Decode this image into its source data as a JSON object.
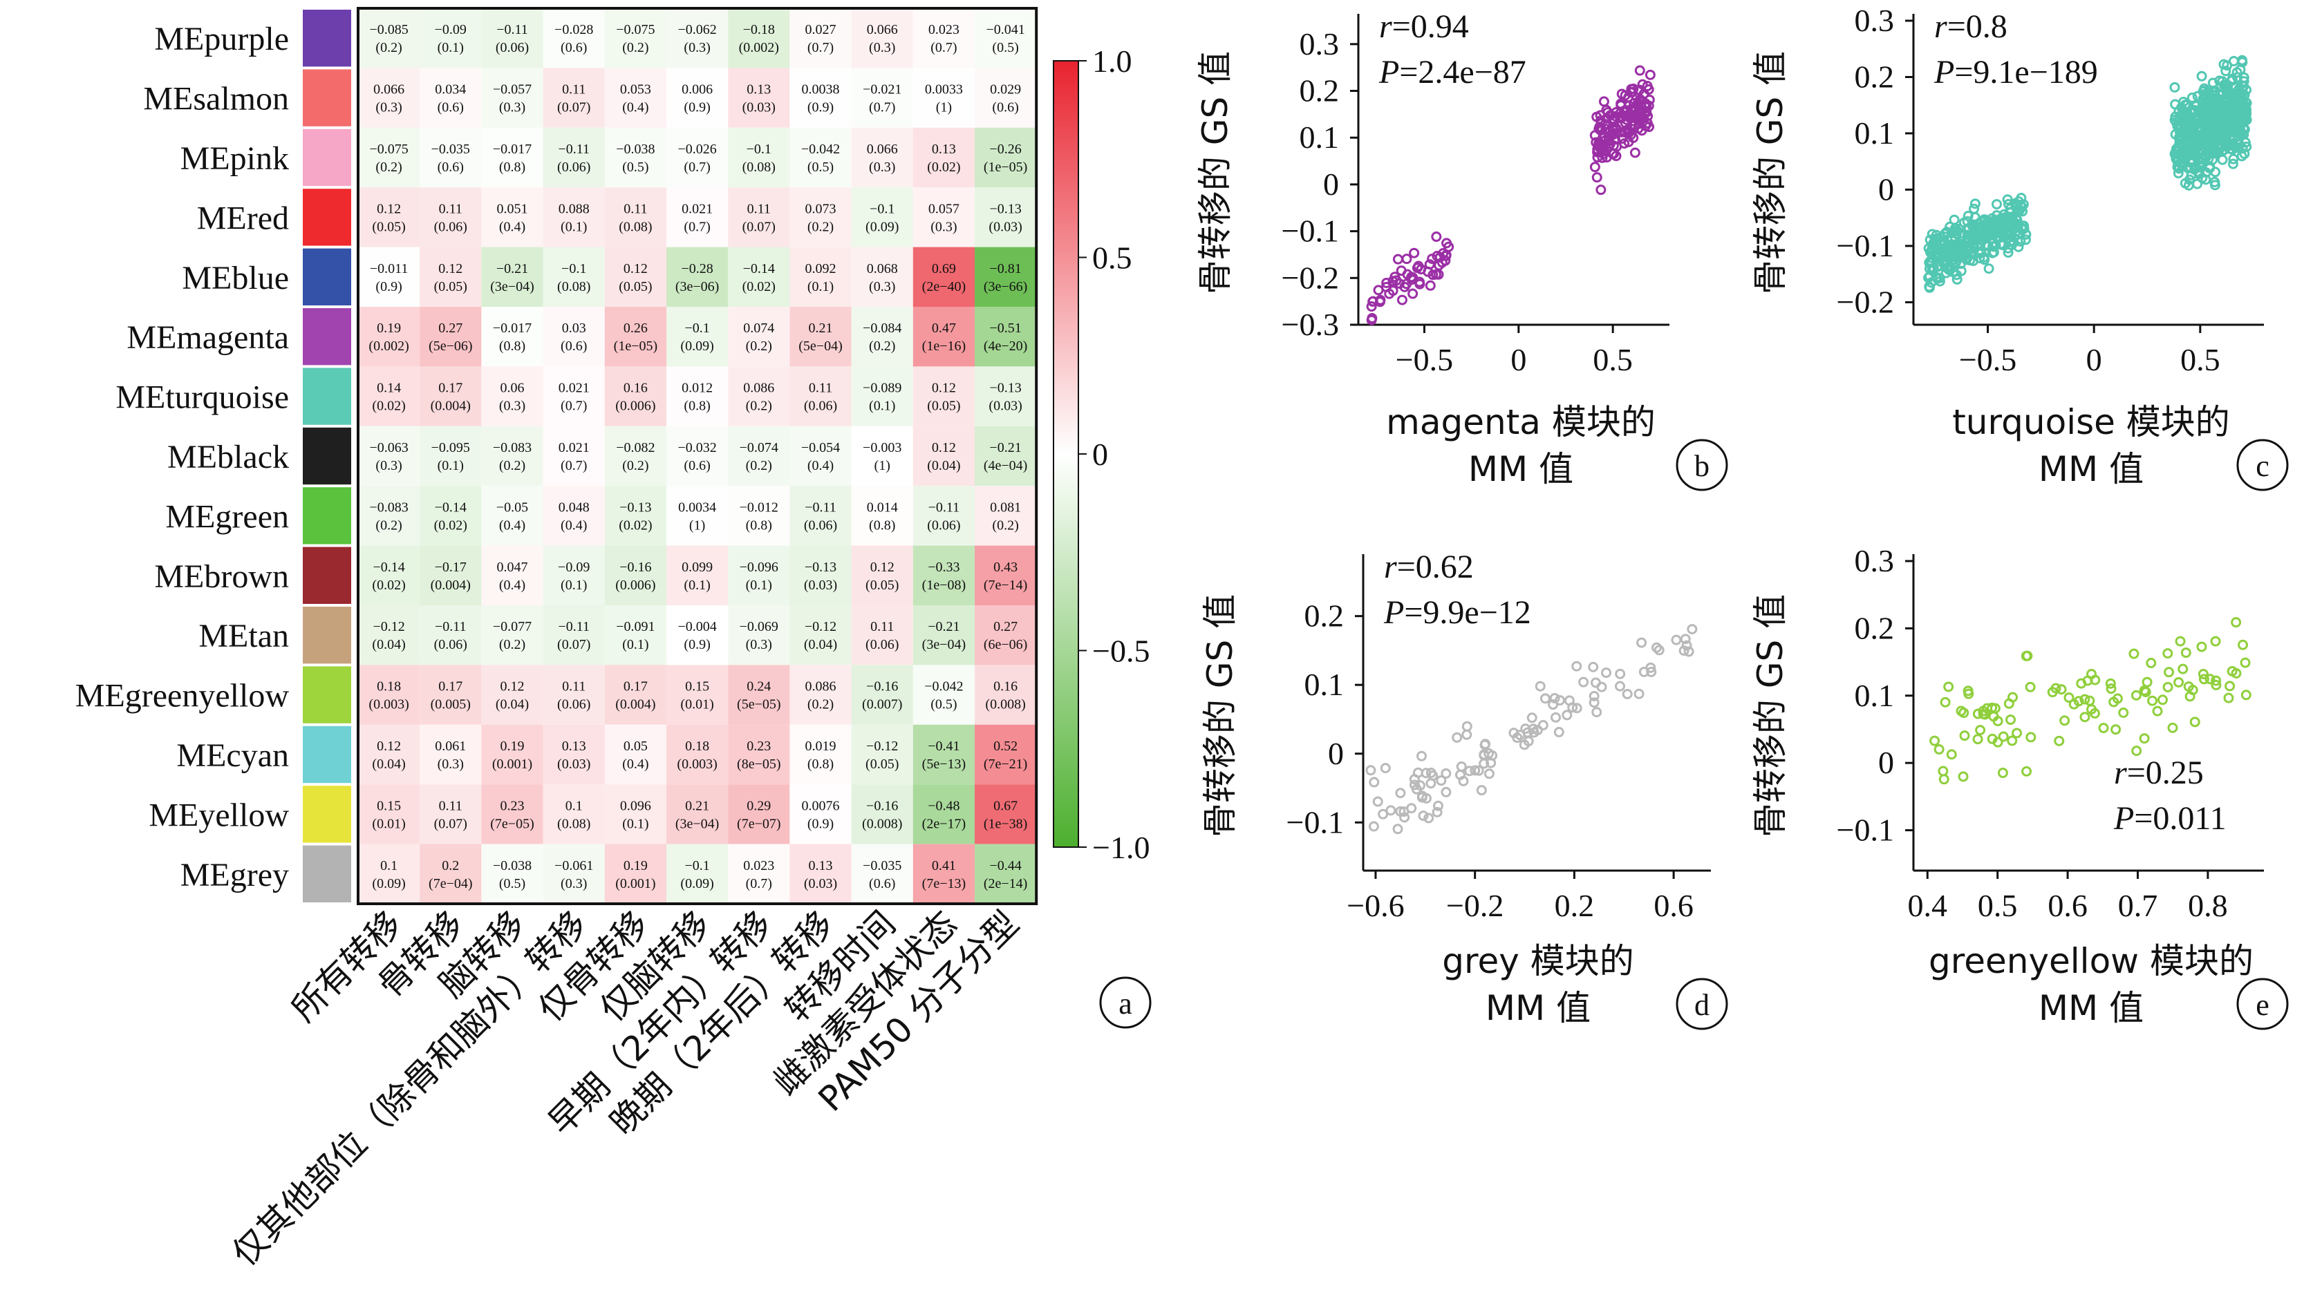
{
  "chart_data": [
    {
      "type": "heatmap",
      "panel_label": "a",
      "rows": [
        "MEpurple",
        "MEsalmon",
        "MEpink",
        "MEred",
        "MEblue",
        "MEmagenta",
        "MEturquoise",
        "MEblack",
        "MEgreen",
        "MEbrown",
        "MEtan",
        "MEgreenyellow",
        "MEcyan",
        "MEyellow",
        "MEgrey"
      ],
      "row_colors": [
        "#6c3fad",
        "#f36b6b",
        "#f6a6c6",
        "#ef2a2e",
        "#3352a8",
        "#a144b0",
        "#5ccbb5",
        "#1f1f1f",
        "#5ac23c",
        "#99282f",
        "#c6a27c",
        "#9ed43c",
        "#6fd1d4",
        "#e6e43a",
        "#b3b3b3"
      ],
      "columns": [
        "所有转移",
        "骨转移",
        "脑转移",
        "仅其他部位（除骨和脑外）转移",
        "仅骨转移",
        "仅脑转移",
        "早期（2年内）转移",
        "晚期（2年后）转移",
        "转移时间",
        "雌激素受体状态",
        "PAM50 分子分型"
      ],
      "values": [
        [
          -0.085,
          -0.09,
          -0.11,
          -0.028,
          -0.075,
          -0.062,
          -0.18,
          0.027,
          0.066,
          0.023,
          -0.041
        ],
        [
          0.066,
          0.034,
          -0.057,
          0.11,
          0.053,
          0.006,
          0.13,
          0.0038,
          -0.021,
          0.0033,
          0.029
        ],
        [
          -0.075,
          -0.035,
          -0.017,
          -0.11,
          -0.038,
          -0.026,
          -0.1,
          -0.042,
          0.066,
          0.13,
          -0.26
        ],
        [
          0.12,
          0.11,
          0.051,
          0.088,
          0.11,
          0.021,
          0.11,
          0.073,
          -0.1,
          0.057,
          -0.13
        ],
        [
          -0.011,
          0.12,
          -0.21,
          -0.1,
          0.12,
          -0.28,
          -0.14,
          0.092,
          0.068,
          0.69,
          -0.81
        ],
        [
          0.19,
          0.27,
          -0.017,
          0.03,
          0.26,
          -0.1,
          0.074,
          0.21,
          -0.084,
          0.47,
          -0.51
        ],
        [
          0.14,
          0.17,
          0.06,
          0.021,
          0.16,
          0.012,
          0.086,
          0.11,
          -0.089,
          0.12,
          -0.13
        ],
        [
          -0.063,
          -0.095,
          -0.083,
          0.021,
          -0.082,
          -0.032,
          -0.074,
          -0.054,
          -0.003,
          0.12,
          -0.21
        ],
        [
          -0.083,
          -0.14,
          -0.05,
          0.048,
          -0.13,
          0.0034,
          -0.012,
          -0.11,
          0.014,
          -0.11,
          0.081
        ],
        [
          -0.14,
          -0.17,
          0.047,
          -0.09,
          -0.16,
          0.099,
          -0.096,
          -0.13,
          0.12,
          -0.33,
          0.43
        ],
        [
          -0.12,
          -0.11,
          -0.077,
          -0.11,
          -0.091,
          -0.004,
          -0.069,
          -0.12,
          0.11,
          -0.21,
          0.27
        ],
        [
          0.18,
          0.17,
          0.12,
          0.11,
          0.17,
          0.15,
          0.24,
          0.086,
          -0.16,
          -0.042,
          0.16
        ],
        [
          0.12,
          0.061,
          0.19,
          0.13,
          0.05,
          0.18,
          0.23,
          0.019,
          -0.12,
          -0.41,
          0.52
        ],
        [
          0.15,
          0.11,
          0.23,
          0.1,
          0.096,
          0.21,
          0.29,
          0.0076,
          -0.16,
          -0.48,
          0.67
        ],
        [
          0.1,
          0.2,
          -0.038,
          -0.061,
          0.19,
          -0.1,
          0.023,
          0.13,
          -0.035,
          0.41,
          -0.44
        ]
      ],
      "p_values": [
        [
          "(0.2)",
          "(0.1)",
          "(0.06)",
          "(0.6)",
          "(0.2)",
          "(0.3)",
          "(0.002)",
          "(0.7)",
          "(0.3)",
          "(0.7)",
          "(0.5)"
        ],
        [
          "(0.3)",
          "(0.6)",
          "(0.3)",
          "(0.07)",
          "(0.4)",
          "(0.9)",
          "(0.03)",
          "(0.9)",
          "(0.7)",
          "(1)",
          "(0.6)"
        ],
        [
          "(0.2)",
          "(0.6)",
          "(0.8)",
          "(0.06)",
          "(0.5)",
          "(0.7)",
          "(0.08)",
          "(0.5)",
          "(0.3)",
          "(0.02)",
          "(1e−05)"
        ],
        [
          "(0.05)",
          "(0.06)",
          "(0.4)",
          "(0.1)",
          "(0.08)",
          "(0.7)",
          "(0.07)",
          "(0.2)",
          "(0.09)",
          "(0.3)",
          "(0.03)"
        ],
        [
          "(0.9)",
          "(0.05)",
          "(3e−04)",
          "(0.08)",
          "(0.05)",
          "(3e−06)",
          "(0.02)",
          "(0.1)",
          "(0.3)",
          "(2e−40)",
          "(3e−66)"
        ],
        [
          "(0.002)",
          "(5e−06)",
          "(0.8)",
          "(0.6)",
          "(1e−05)",
          "(0.09)",
          "(0.2)",
          "(5e−04)",
          "(0.2)",
          "(1e−16)",
          "(4e−20)"
        ],
        [
          "(0.02)",
          "(0.004)",
          "(0.3)",
          "(0.7)",
          "(0.006)",
          "(0.8)",
          "(0.2)",
          "(0.06)",
          "(0.1)",
          "(0.05)",
          "(0.03)"
        ],
        [
          "(0.3)",
          "(0.1)",
          "(0.2)",
          "(0.7)",
          "(0.2)",
          "(0.6)",
          "(0.2)",
          "(0.4)",
          "(1)",
          "(0.04)",
          "(4e−04)"
        ],
        [
          "(0.2)",
          "(0.02)",
          "(0.4)",
          "(0.4)",
          "(0.02)",
          "(1)",
          "(0.8)",
          "(0.06)",
          "(0.8)",
          "(0.06)",
          "(0.2)"
        ],
        [
          "(0.02)",
          "(0.004)",
          "(0.4)",
          "(0.1)",
          "(0.006)",
          "(0.1)",
          "(0.1)",
          "(0.03)",
          "(0.05)",
          "(1e−08)",
          "(7e−14)"
        ],
        [
          "(0.04)",
          "(0.06)",
          "(0.2)",
          "(0.07)",
          "(0.1)",
          "(0.9)",
          "(0.3)",
          "(0.04)",
          "(0.06)",
          "(3e−04)",
          "(6e−06)"
        ],
        [
          "(0.003)",
          "(0.005)",
          "(0.04)",
          "(0.06)",
          "(0.004)",
          "(0.01)",
          "(5e−05)",
          "(0.2)",
          "(0.007)",
          "(0.5)",
          "(0.008)"
        ],
        [
          "(0.04)",
          "(0.3)",
          "(0.001)",
          "(0.03)",
          "(0.4)",
          "(0.003)",
          "(8e−05)",
          "(0.8)",
          "(0.05)",
          "(5e−13)",
          "(7e−21)"
        ],
        [
          "(0.01)",
          "(0.07)",
          "(7e−05)",
          "(0.08)",
          "(0.1)",
          "(3e−04)",
          "(7e−07)",
          "(0.9)",
          "(0.008)",
          "(2e−17)",
          "(1e−38)"
        ],
        [
          "(0.09)",
          "(7e−04)",
          "(0.5)",
          "(0.3)",
          "(0.001)",
          "(0.09)",
          "(0.7)",
          "(0.03)",
          "(0.6)",
          "(7e−13)",
          "(2e−14)"
        ]
      ],
      "colorbar": {
        "range": [
          -1.0,
          1.0
        ],
        "ticks": [
          1.0,
          0.5,
          0,
          -0.5,
          -1.0
        ],
        "tick_labels": [
          "1.0",
          "0.5",
          "0",
          "−0.5",
          "−1.0"
        ],
        "low_color": "#4caf2e",
        "mid_color": "#ffffff",
        "high_color": "#e8232f"
      }
    },
    {
      "type": "scatter",
      "panel_label": "b",
      "color": "#9b2fa5",
      "xlabel_line1": "magenta 模块的",
      "xlabel_line2": "MM 值",
      "ylabel": "骨转移的 GS 值",
      "xlim": [
        -0.85,
        0.8
      ],
      "ylim": [
        -0.3,
        0.35
      ],
      "xticks": [
        -0.5,
        0,
        0.5
      ],
      "xtick_labels": [
        "−0.5",
        "0",
        "0.5"
      ],
      "yticks": [
        0.3,
        0.2,
        0.1,
        0,
        -0.1,
        -0.2,
        -0.3
      ],
      "ytick_labels": [
        "0.3",
        "0.2",
        "0.1",
        "0",
        "−0.1",
        "−0.2",
        "−0.3"
      ],
      "stat_r_label": "r",
      "stat_r": "=0.94",
      "stat_p_label": "P",
      "stat_p": "=2.4e−87",
      "clusters": [
        {
          "n": 52,
          "x_range": [
            -0.78,
            -0.35
          ],
          "y_center": -0.2,
          "y_spread": 0.045,
          "slope": 0.22
        },
        {
          "n": 140,
          "x_range": [
            0.4,
            0.7
          ],
          "y_center": 0.13,
          "y_spread": 0.065,
          "slope": 0.35
        }
      ]
    },
    {
      "type": "scatter",
      "panel_label": "c",
      "color": "#52c7b2",
      "xlabel_line1": "turquoise 模块的",
      "xlabel_line2": "MM 值",
      "ylabel": "骨转移的 GS 值",
      "xlim": [
        -0.85,
        0.8
      ],
      "ylim": [
        -0.24,
        0.3
      ],
      "xticks": [
        -0.5,
        0,
        0.5
      ],
      "xtick_labels": [
        "−0.5",
        "0",
        "0.5"
      ],
      "yticks": [
        0.3,
        0.2,
        0.1,
        0,
        -0.1,
        -0.2
      ],
      "ytick_labels": [
        "0.3",
        "0.2",
        "0.1",
        "0",
        "−0.1",
        "−0.2"
      ],
      "stat_r_label": "r",
      "stat_r": "=0.8",
      "stat_p_label": "P",
      "stat_p": "=9.1e−189",
      "clusters": [
        {
          "n": 300,
          "x_range": [
            -0.78,
            -0.32
          ],
          "y_center": -0.09,
          "y_spread": 0.045,
          "slope": 0.15
        },
        {
          "n": 520,
          "x_range": [
            0.38,
            0.72
          ],
          "y_center": 0.11,
          "y_spread": 0.07,
          "slope": 0.2
        }
      ]
    },
    {
      "type": "scatter",
      "panel_label": "d",
      "color": "#b9b9b9",
      "xlabel_line1": "grey 模块的",
      "xlabel_line2": "MM 值",
      "ylabel": "骨转移的 GS 值",
      "xlim": [
        -0.65,
        0.75
      ],
      "ylim": [
        -0.17,
        0.28
      ],
      "xticks": [
        -0.6,
        -0.2,
        0.2,
        0.6
      ],
      "xtick_labels": [
        "−0.6",
        "−0.2",
        "0.2",
        "0.6"
      ],
      "yticks": [
        0.2,
        0.1,
        0,
        -0.1
      ],
      "ytick_labels": [
        "0.2",
        "0.1",
        "0",
        "−0.1"
      ],
      "stat_r_label": "r",
      "stat_r": "=0.62",
      "stat_p_label": "P",
      "stat_p": "=9.9e−12",
      "clusters": [
        {
          "n": 100,
          "x_range": [
            -0.62,
            0.7
          ],
          "y_center": 0.04,
          "y_spread": 0.05,
          "slope": 0.2
        }
      ]
    },
    {
      "type": "scatter",
      "panel_label": "e",
      "color": "#8fcf3c",
      "xlabel_line1": "greenyellow 模块的",
      "xlabel_line2": "MM 值",
      "ylabel": "骨转移的 GS 值",
      "xlim": [
        0.38,
        0.88
      ],
      "ylim": [
        -0.16,
        0.3
      ],
      "xticks": [
        0.4,
        0.5,
        0.6,
        0.7,
        0.8
      ],
      "xtick_labels": [
        "0.4",
        "0.5",
        "0.6",
        "0.7",
        "0.8"
      ],
      "yticks": [
        0.3,
        0.2,
        0.1,
        0,
        -0.1
      ],
      "ytick_labels": [
        "0.3",
        "0.2",
        "0.1",
        "0",
        "−0.1"
      ],
      "stat_r_label": "r",
      "stat_r": "=0.25",
      "stat_p_label": "P",
      "stat_p": "=0.011",
      "clusters": [
        {
          "n": 100,
          "x_range": [
            0.41,
            0.86
          ],
          "y_center": 0.09,
          "y_spread": 0.07,
          "slope": 0.2
        }
      ]
    }
  ]
}
